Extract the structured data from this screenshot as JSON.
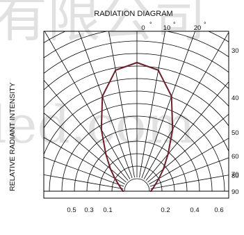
{
  "chart_data": {
    "type": "polar",
    "title": "RADIATION DIAGRAM",
    "ylabel": "RELATIVE RADIANT INTENSITY",
    "angle_unit": "°",
    "angle_ticks_top": [
      "0",
      "10",
      "20"
    ],
    "angle_ticks_right": [
      "30",
      "40",
      "50",
      "60",
      "70",
      "80",
      "90"
    ],
    "radial_ticks_left": [
      "0.5",
      "0.3",
      "0.1"
    ],
    "radial_ticks_right": [
      "0.2",
      "0.4",
      "0.6"
    ],
    "series": [
      {
        "angle": [
          -90,
          -80,
          -70,
          -60,
          -50,
          -40,
          -30,
          -20,
          -10,
          0,
          10,
          20,
          30,
          40,
          50,
          60,
          70,
          80,
          90
        ],
        "r": [
          0,
          0.02,
          0.05,
          0.1,
          0.18,
          0.3,
          0.5,
          0.76,
          0.95,
          1.0,
          0.95,
          0.76,
          0.5,
          0.3,
          0.18,
          0.1,
          0.05,
          0.02,
          0
        ],
        "color": "#6b1f2a"
      }
    ],
    "grid": true,
    "watermark": [
      "有限公司",
      "led.com"
    ]
  }
}
